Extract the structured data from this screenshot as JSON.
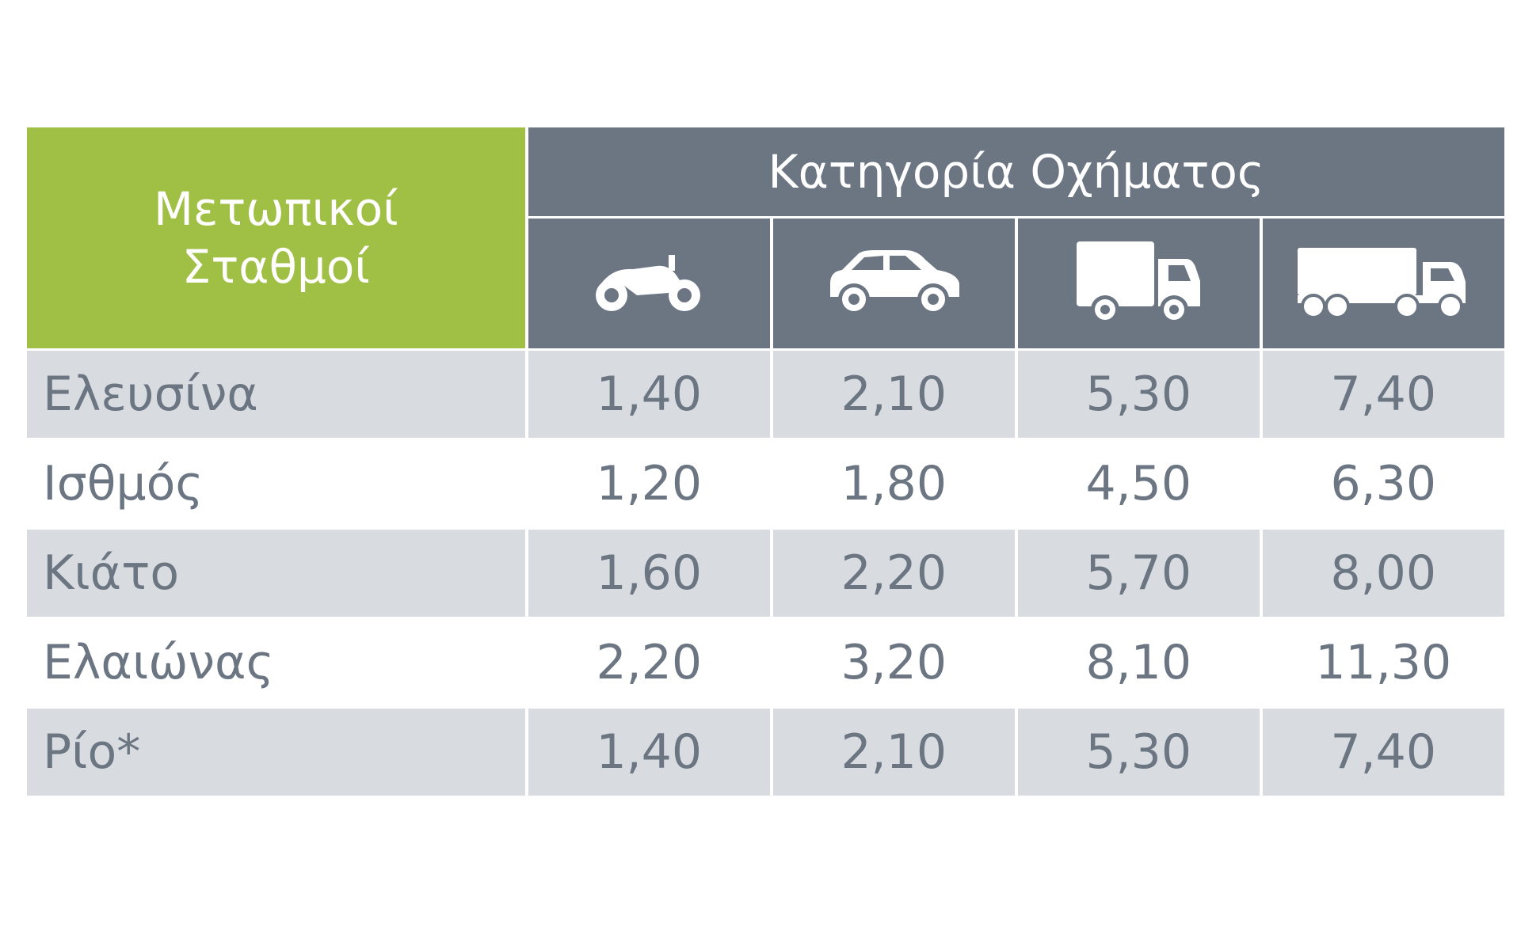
{
  "header": {
    "station_label": "Μετωπικοί Σταθμοί",
    "category_label": "Κατηγορία Οχήματος"
  },
  "table": {
    "rows": [
      [
        "Ελευσίνα",
        "1,40",
        "2,10",
        "5,30",
        "7,40"
      ],
      [
        "Ισθμός",
        "1,20",
        "1,80",
        "4,50",
        "6,30"
      ],
      [
        "Κιάτο",
        "1,60",
        "2,20",
        "5,70",
        "8,00"
      ],
      [
        "Ελαιώνας",
        "2,20",
        "3,20",
        "8,10",
        "11,30"
      ],
      [
        "Ρίο*",
        "1,40",
        "2,10",
        "5,30",
        "7,40"
      ]
    ]
  }
}
